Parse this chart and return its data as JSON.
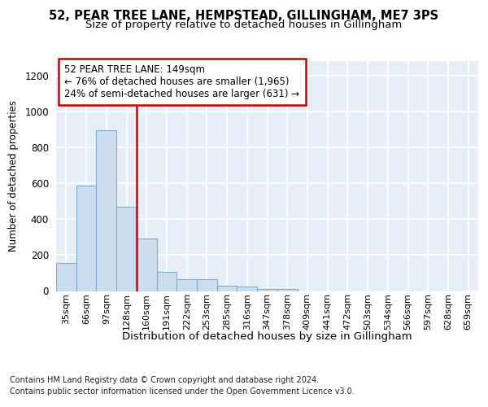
{
  "title1": "52, PEAR TREE LANE, HEMPSTEAD, GILLINGHAM, ME7 3PS",
  "title2": "Size of property relative to detached houses in Gillingham",
  "xlabel": "Distribution of detached houses by size in Gillingham",
  "ylabel": "Number of detached properties",
  "footnote1": "Contains HM Land Registry data © Crown copyright and database right 2024.",
  "footnote2": "Contains public sector information licensed under the Open Government Licence v3.0.",
  "bin_labels": [
    "35sqm",
    "66sqm",
    "97sqm",
    "128sqm",
    "160sqm",
    "191sqm",
    "222sqm",
    "253sqm",
    "285sqm",
    "316sqm",
    "347sqm",
    "378sqm",
    "409sqm",
    "441sqm",
    "472sqm",
    "503sqm",
    "534sqm",
    "566sqm",
    "597sqm",
    "628sqm",
    "659sqm"
  ],
  "bar_heights": [
    155,
    585,
    895,
    470,
    290,
    105,
    65,
    65,
    28,
    25,
    10,
    10,
    0,
    0,
    0,
    0,
    0,
    0,
    0,
    0,
    0
  ],
  "bar_color": "#ccddf0",
  "bar_edge_color": "#7aaecc",
  "annotation_line1": "52 PEAR TREE LANE: 149sqm",
  "annotation_line2": "← 76% of detached houses are smaller (1,965)",
  "annotation_line3": "24% of semi-detached houses are larger (631) →",
  "vline_x": 3.5,
  "vline_color": "#cc0000",
  "ylim": [
    0,
    1280
  ],
  "yticks": [
    0,
    200,
    400,
    600,
    800,
    1000,
    1200
  ],
  "bg_color": "#e8eef8",
  "grid_color": "#ffffff",
  "fig_bg": "#ffffff"
}
